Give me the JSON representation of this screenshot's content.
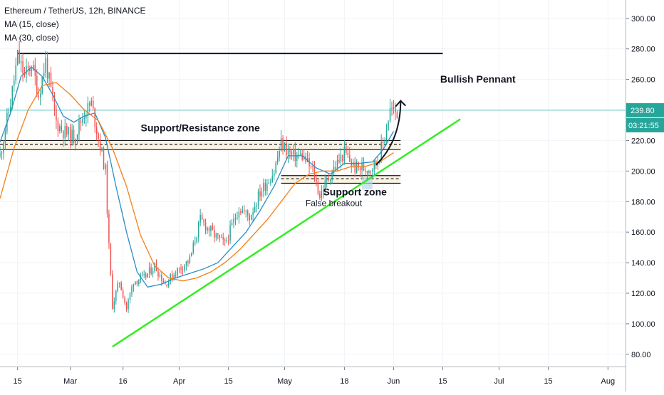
{
  "header": {
    "symbol_line": "Ethereum / TetherUS, 12h, BINANCE",
    "indicators": [
      "MA (15, close)",
      "MA (30, close)"
    ]
  },
  "colors": {
    "up": "#26a69a",
    "down": "#ef5350",
    "ma15": "#2a8ec6",
    "ma30": "#f57f17",
    "trendline": "#33ee22",
    "price_line": "#5fc9c7",
    "price_tag": "#26a69a",
    "zone_fill": "#fbf3e2"
  },
  "chart_data": {
    "type": "candlestick",
    "title": "Ethereum / TetherUS, 12h, BINANCE",
    "ylim": [
      72,
      312
    ],
    "y_ticks": [
      80,
      100,
      120,
      140,
      160,
      180,
      200,
      220,
      240,
      260,
      280,
      300
    ],
    "y_tick_labels": [
      "80.00",
      "100.00",
      "120.00",
      "140.00",
      "160.00",
      "180.00",
      "200.00",
      "220.00",
      "240.00",
      "260.00",
      "280.00",
      "300.00"
    ],
    "x_ticks": [
      {
        "label": "15",
        "date": "2020-02-15"
      },
      {
        "label": "Mar",
        "date": "2020-03-01"
      },
      {
        "label": "16",
        "date": "2020-03-16"
      },
      {
        "label": "Apr",
        "date": "2020-04-01"
      },
      {
        "label": "15",
        "date": "2020-04-15"
      },
      {
        "label": "May",
        "date": "2020-05-01"
      },
      {
        "label": "18",
        "date": "2020-05-18"
      },
      {
        "label": "Jun",
        "date": "2020-06-01"
      },
      {
        "label": "15",
        "date": "2020-06-15"
      },
      {
        "label": "Jul",
        "date": "2020-07-01"
      },
      {
        "label": "15",
        "date": "2020-07-15"
      },
      {
        "label": "Aug",
        "date": "2020-08-01"
      }
    ],
    "x_range": [
      "2020-02-10",
      "2020-08-06"
    ],
    "series": [
      {
        "name": "MA (15, close)",
        "color": "#2a8ec6",
        "points": [
          [
            "2020-02-10",
            219
          ],
          [
            "2020-02-13",
            238
          ],
          [
            "2020-02-16",
            262
          ],
          [
            "2020-02-19",
            268
          ],
          [
            "2020-02-22",
            262
          ],
          [
            "2020-02-25",
            250
          ],
          [
            "2020-02-28",
            236
          ],
          [
            "2020-03-02",
            232
          ],
          [
            "2020-03-05",
            236
          ],
          [
            "2020-03-08",
            238
          ],
          [
            "2020-03-11",
            222
          ],
          [
            "2020-03-14",
            190
          ],
          [
            "2020-03-17",
            160
          ],
          [
            "2020-03-20",
            134
          ],
          [
            "2020-03-23",
            124
          ],
          [
            "2020-03-27",
            126
          ],
          [
            "2020-03-31",
            130
          ],
          [
            "2020-04-04",
            133
          ],
          [
            "2020-04-08",
            136
          ],
          [
            "2020-04-12",
            140
          ],
          [
            "2020-04-16",
            150
          ],
          [
            "2020-04-20",
            160
          ],
          [
            "2020-04-24",
            174
          ],
          [
            "2020-04-28",
            190
          ],
          [
            "2020-05-02",
            210
          ],
          [
            "2020-05-06",
            210
          ],
          [
            "2020-05-10",
            202
          ],
          [
            "2020-05-14",
            198
          ],
          [
            "2020-05-18",
            205
          ],
          [
            "2020-05-22",
            205
          ],
          [
            "2020-05-26",
            206
          ],
          [
            "2020-05-29",
            214
          ],
          [
            "2020-06-01",
            226
          ]
        ]
      },
      {
        "name": "MA (30, close)",
        "color": "#f57f17",
        "points": [
          [
            "2020-02-10",
            182
          ],
          [
            "2020-02-14",
            215
          ],
          [
            "2020-02-18",
            240
          ],
          [
            "2020-02-22",
            256
          ],
          [
            "2020-02-26",
            258
          ],
          [
            "2020-03-01",
            250
          ],
          [
            "2020-03-05",
            240
          ],
          [
            "2020-03-09",
            233
          ],
          [
            "2020-03-13",
            215
          ],
          [
            "2020-03-17",
            190
          ],
          [
            "2020-03-21",
            158
          ],
          [
            "2020-03-25",
            138
          ],
          [
            "2020-03-29",
            130
          ],
          [
            "2020-04-02",
            128
          ],
          [
            "2020-04-06",
            130
          ],
          [
            "2020-04-10",
            134
          ],
          [
            "2020-04-14",
            140
          ],
          [
            "2020-04-18",
            148
          ],
          [
            "2020-04-22",
            158
          ],
          [
            "2020-04-26",
            168
          ],
          [
            "2020-04-30",
            180
          ],
          [
            "2020-05-04",
            192
          ],
          [
            "2020-05-08",
            198
          ],
          [
            "2020-05-12",
            200
          ],
          [
            "2020-05-16",
            200
          ],
          [
            "2020-05-20",
            203
          ],
          [
            "2020-05-24",
            203
          ],
          [
            "2020-05-28",
            206
          ],
          [
            "2020-06-01",
            212
          ]
        ]
      }
    ],
    "price_path": [
      [
        "2020-02-10",
        210
      ],
      [
        "2020-02-13",
        245
      ],
      [
        "2020-02-15",
        275
      ],
      [
        "2020-02-17",
        262
      ],
      [
        "2020-02-19",
        270
      ],
      [
        "2020-02-21",
        250
      ],
      [
        "2020-02-23",
        272
      ],
      [
        "2020-02-26",
        232
      ],
      [
        "2020-02-28",
        226
      ],
      [
        "2020-03-02",
        222
      ],
      [
        "2020-03-05",
        238
      ],
      [
        "2020-03-07",
        244
      ],
      [
        "2020-03-09",
        222
      ],
      [
        "2020-03-11",
        200
      ],
      [
        "2020-03-12",
        150
      ],
      [
        "2020-03-13",
        112
      ],
      [
        "2020-03-15",
        128
      ],
      [
        "2020-03-17",
        110
      ],
      [
        "2020-03-19",
        128
      ],
      [
        "2020-03-22",
        130
      ],
      [
        "2020-03-25",
        138
      ],
      [
        "2020-03-28",
        126
      ],
      [
        "2020-03-31",
        134
      ],
      [
        "2020-04-04",
        142
      ],
      [
        "2020-04-07",
        168
      ],
      [
        "2020-04-11",
        158
      ],
      [
        "2020-04-14",
        152
      ],
      [
        "2020-04-18",
        176
      ],
      [
        "2020-04-21",
        170
      ],
      [
        "2020-04-24",
        186
      ],
      [
        "2020-04-28",
        200
      ],
      [
        "2020-04-30",
        218
      ],
      [
        "2020-05-03",
        210
      ],
      [
        "2020-05-06",
        210
      ],
      [
        "2020-05-09",
        200
      ],
      [
        "2020-05-11",
        184
      ],
      [
        "2020-05-14",
        198
      ],
      [
        "2020-05-18",
        212
      ],
      [
        "2020-05-21",
        202
      ],
      [
        "2020-05-25",
        202
      ],
      [
        "2020-05-27",
        205
      ],
      [
        "2020-05-29",
        218
      ],
      [
        "2020-05-31",
        240
      ],
      [
        "2020-06-02",
        238
      ]
    ],
    "current_price": 239.8,
    "current_price_label": "239.80",
    "countdown_label": "03:21:55",
    "resistance_line": {
      "from": "2020-02-15",
      "to": "2020-06-15",
      "value": 277
    },
    "trendline": {
      "from": [
        "2020-03-13",
        85
      ],
      "to": [
        "2020-06-20",
        234
      ]
    },
    "zones": [
      {
        "name": "Support/Resistance zone",
        "from": "2020-02-10",
        "to": "2020-06-03",
        "top": 220,
        "mid": 217.5,
        "bottom": 214
      },
      {
        "name": "Support zone",
        "from": "2020-04-30",
        "to": "2020-06-03",
        "top": 197,
        "mid": 195,
        "bottom": 192
      }
    ],
    "breakout_box": {
      "from": "2020-05-23",
      "to": "2020-05-26",
      "top": 196,
      "bottom": 188
    },
    "annotations": [
      {
        "text": "Bullish Pennant",
        "date": "2020-06-25",
        "value": 258
      },
      {
        "text": "Support/Resistance zone",
        "date": "2020-04-07",
        "value": 226
      },
      {
        "text": "Support zone",
        "date": "2020-05-21",
        "value": 184
      },
      {
        "text": "False breakout",
        "date": "2020-05-15",
        "value": 177
      }
    ],
    "arrow": {
      "from": [
        "2020-05-27",
        204
      ],
      "control": [
        "2020-06-03",
        220
      ],
      "to": [
        "2020-06-03",
        246
      ]
    }
  }
}
